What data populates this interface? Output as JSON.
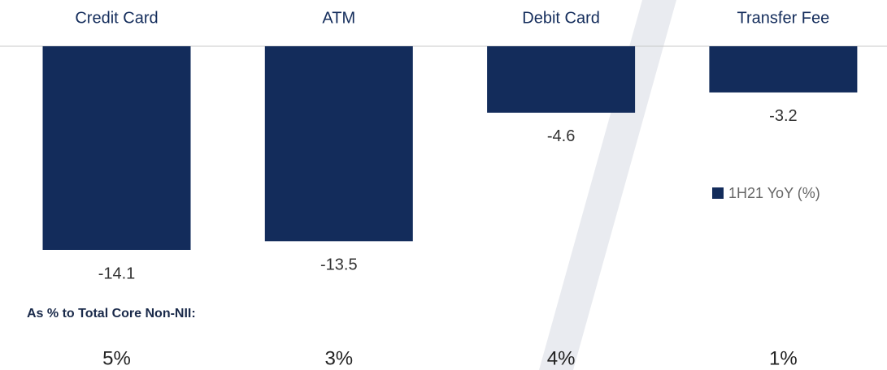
{
  "chart_data": {
    "type": "bar",
    "categories": [
      "Credit Card",
      "ATM",
      "Debit Card",
      "Transfer Fee"
    ],
    "series": [
      {
        "name": "1H21 YoY (%)",
        "color": "#132c5b",
        "values": [
          -14.1,
          -13.5,
          -4.6,
          -3.2
        ]
      }
    ],
    "ylim": [
      -15,
      0
    ],
    "legend": "right",
    "shares": {
      "label": "As % to Total Core Non-NII:",
      "values": [
        5,
        3,
        4,
        1
      ],
      "value_labels": [
        "5%",
        "3%",
        "4%",
        "1%"
      ]
    }
  }
}
